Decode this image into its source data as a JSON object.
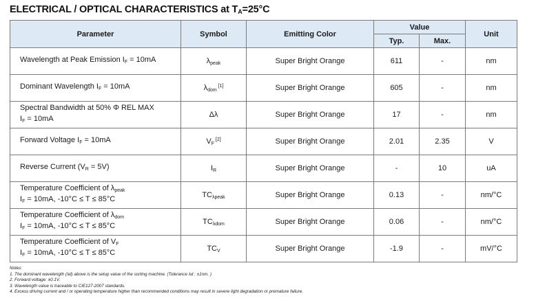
{
  "title": {
    "prefix": "ELECTRICAL / OPTICAL CHARACTERISTICS at T",
    "sub": "A",
    "suffix": "=25°C"
  },
  "header": {
    "parameter": "Parameter",
    "symbol": "Symbol",
    "emitting_color": "Emitting Color",
    "value": "Value",
    "typ": "Typ.",
    "max": "Max.",
    "unit": "Unit"
  },
  "rows": [
    {
      "param_line1": "Wavelength at Peak Emission I",
      "param_line1_sub": "F",
      "param_line1_tail": " = 10mA",
      "param_line2": "",
      "param_line2_sub": "",
      "param_line2_tail": "",
      "sym_main": "λ",
      "sym_sub": "peak",
      "sym_sup": "",
      "color": "Super Bright Orange",
      "typ": "611",
      "max": "-",
      "unit": "nm"
    },
    {
      "param_line1": "Dominant Wavelength I",
      "param_line1_sub": "F",
      "param_line1_tail": " = 10mA",
      "param_line2": "",
      "param_line2_sub": "",
      "param_line2_tail": "",
      "sym_main": "λ",
      "sym_sub": "dom",
      "sym_sup": " [1]",
      "color": "Super Bright Orange",
      "typ": "605",
      "max": "-",
      "unit": "nm"
    },
    {
      "param_line1": "Spectral Bandwidth at 50% Φ REL MAX",
      "param_line1_sub": "",
      "param_line1_tail": "",
      "param_line2": "I",
      "param_line2_sub": "F",
      "param_line2_tail": " = 10mA",
      "sym_main": "Δλ",
      "sym_sub": "",
      "sym_sup": "",
      "color": "Super Bright Orange",
      "typ": "17",
      "max": "-",
      "unit": "nm"
    },
    {
      "param_line1": "Forward Voltage I",
      "param_line1_sub": "F",
      "param_line1_tail": " = 10mA",
      "param_line2": "",
      "param_line2_sub": "",
      "param_line2_tail": "",
      "sym_main": "V",
      "sym_sub": "F",
      "sym_sup": " [2]",
      "color": "Super Bright Orange",
      "typ": "2.01",
      "max": "2.35",
      "unit": "V"
    },
    {
      "param_line1": "Reverse Current (V",
      "param_line1_sub": "R",
      "param_line1_tail": " = 5V)",
      "param_line2": "",
      "param_line2_sub": "",
      "param_line2_tail": "",
      "sym_main": "I",
      "sym_sub": "R",
      "sym_sup": "",
      "color": "Super Bright Orange",
      "typ": "-",
      "max": "10",
      "unit": "uA"
    },
    {
      "param_line1": "Temperature Coefficient of λ",
      "param_line1_sub": "peak",
      "param_line1_tail": "",
      "param_line2": "I",
      "param_line2_sub": "F",
      "param_line2_tail": " = 10mA, -10°C ≤ T ≤ 85°C",
      "sym_main": "TC",
      "sym_sub": "λpeak",
      "sym_sup": "",
      "color": "Super Bright Orange",
      "typ": "0.13",
      "max": "-",
      "unit": "nm/°C"
    },
    {
      "param_line1": "Temperature Coefficient of λ",
      "param_line1_sub": "dom",
      "param_line1_tail": "",
      "param_line2": "I",
      "param_line2_sub": "F",
      "param_line2_tail": " = 10mA, -10°C ≤ T ≤ 85°C",
      "sym_main": "TC",
      "sym_sub": "λdom",
      "sym_sup": "",
      "color": "Super Bright Orange",
      "typ": "0.06",
      "max": "-",
      "unit": "nm/°C"
    },
    {
      "param_line1": "Temperature Coefficient of  V",
      "param_line1_sub": "F",
      "param_line1_tail": "",
      "param_line2": "I",
      "param_line2_sub": "F",
      "param_line2_tail": " = 10mA, -10°C ≤ T ≤ 85°C",
      "sym_main": "TC",
      "sym_sub": "V",
      "sym_sup": "",
      "color": "Super Bright Orange",
      "typ": "-1.9",
      "max": "-",
      "unit": "mV/°C"
    }
  ],
  "notes": {
    "heading": "Notes:",
    "items": [
      "1. The dominant wavelength (λd) above is the setup value of the sorting machine.  (Tolerance  λd : ±1nm. )",
      "2. Forward voltage: ±0.1V.",
      "3. Wavelength value is traceable to CIE127-2007 standards.",
      "4. Excess driving current and / or operating temperature higher than recommended conditions may result in severe light degradation or premature failure."
    ]
  },
  "colors": {
    "header_bg": "#dde9f5",
    "border": "#7a7a7a"
  }
}
